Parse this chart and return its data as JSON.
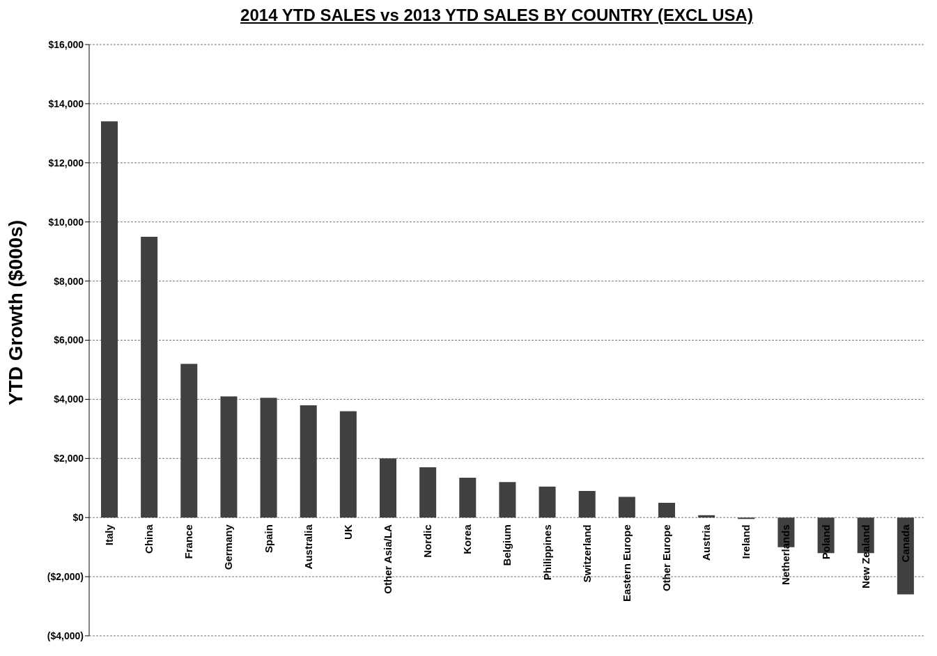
{
  "chart_data": {
    "type": "bar",
    "title": "2014 YTD SALES vs 2013 YTD SALES BY COUNTRY (EXCL USA)",
    "ylabel": "YTD Growth ($000s)",
    "categories": [
      "Italy",
      "China",
      "France",
      "Germany",
      "Spain",
      "Australia",
      "UK",
      "Other Asia/LA",
      "Nordic",
      "Korea",
      "Belgium",
      "Philippines",
      "Switzerland",
      "Eastern Europe",
      "Other Europe",
      "Austria",
      "Ireland",
      "Netherlands",
      "Poland",
      "New Zealand",
      "Canada"
    ],
    "values": [
      13400,
      9500,
      5200,
      4100,
      4050,
      3800,
      3600,
      2000,
      1700,
      1350,
      1200,
      1050,
      900,
      700,
      500,
      80,
      -50,
      -1000,
      -1200,
      -1200,
      -2600
    ],
    "color": "#404040",
    "ylim": [
      -4000,
      16000
    ],
    "yticks": [
      {
        "value": -4000,
        "label": "($4,000)"
      },
      {
        "value": -2000,
        "label": "($2,000)"
      },
      {
        "value": 0,
        "label": "$0"
      },
      {
        "value": 2000,
        "label": "$2,000"
      },
      {
        "value": 4000,
        "label": "$4,000"
      },
      {
        "value": 6000,
        "label": "$6,000"
      },
      {
        "value": 8000,
        "label": "$8,000"
      },
      {
        "value": 10000,
        "label": "$10,000"
      },
      {
        "value": 12000,
        "label": "$12,000"
      },
      {
        "value": 14000,
        "label": "$14,000"
      },
      {
        "value": 16000,
        "label": "$16,000"
      }
    ],
    "grid": "y"
  }
}
